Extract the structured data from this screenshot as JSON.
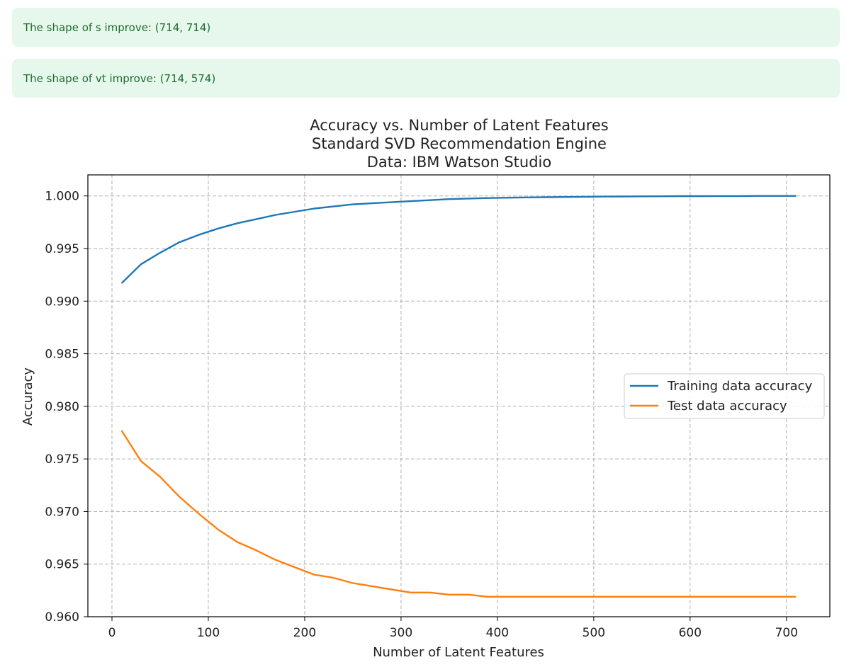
{
  "outputs": [
    {
      "text": "The shape of s improve: (714, 714)"
    },
    {
      "text": "The shape of vt improve: (714, 574)"
    }
  ],
  "colors": {
    "output_bg": "#e6f8ec",
    "output_text": "#1e6b2e",
    "training": "#1f77b4",
    "test": "#ff7f0e",
    "grid": "#b0b0b0"
  },
  "chart_data": {
    "type": "line",
    "title_lines": [
      "Accuracy vs. Number of Latent Features",
      "Standard SVD Recommendation Engine",
      "Data: IBM Watson Studio"
    ],
    "xlabel": "Number of Latent Features",
    "ylabel": "Accuracy",
    "xlim": [
      -25,
      745
    ],
    "ylim": [
      0.96,
      1.002
    ],
    "xticks": [
      0,
      100,
      200,
      300,
      400,
      500,
      600,
      700
    ],
    "yticks": [
      0.96,
      0.965,
      0.97,
      0.975,
      0.98,
      0.985,
      0.99,
      0.995,
      1.0
    ],
    "ytick_labels": [
      "0.960",
      "0.965",
      "0.970",
      "0.975",
      "0.980",
      "0.985",
      "0.990",
      "0.995",
      "1.000"
    ],
    "grid": true,
    "legend_position": "center-right",
    "x": [
      10,
      30,
      50,
      70,
      90,
      110,
      130,
      150,
      170,
      190,
      210,
      230,
      250,
      270,
      290,
      310,
      330,
      350,
      370,
      390,
      410,
      430,
      450,
      470,
      490,
      510,
      530,
      550,
      570,
      590,
      610,
      630,
      650,
      670,
      690,
      710
    ],
    "series": [
      {
        "name": "Training data accuracy",
        "color": "#1f77b4",
        "values": [
          0.9917,
          0.9935,
          0.9946,
          0.9956,
          0.9963,
          0.9969,
          0.9974,
          0.9978,
          0.9982,
          0.9985,
          0.9988,
          0.999,
          0.9992,
          0.9993,
          0.9994,
          0.9995,
          0.9996,
          0.9997,
          0.99975,
          0.9998,
          0.99983,
          0.99986,
          0.99988,
          0.9999,
          0.99992,
          0.99994,
          0.99995,
          0.99996,
          0.99997,
          0.99998,
          0.99998,
          0.99999,
          0.99999,
          1.0,
          1.0,
          1.0
        ]
      },
      {
        "name": "Test data accuracy",
        "color": "#ff7f0e",
        "values": [
          0.9777,
          0.9748,
          0.9733,
          0.9714,
          0.9698,
          0.9683,
          0.9671,
          0.9663,
          0.9654,
          0.9647,
          0.964,
          0.9637,
          0.9632,
          0.9629,
          0.9626,
          0.9623,
          0.9623,
          0.9621,
          0.9621,
          0.9619,
          0.9619,
          0.9619,
          0.9619,
          0.9619,
          0.9619,
          0.9619,
          0.9619,
          0.9619,
          0.9619,
          0.9619,
          0.9619,
          0.9619,
          0.9619,
          0.9619,
          0.9619,
          0.9619
        ]
      }
    ]
  }
}
